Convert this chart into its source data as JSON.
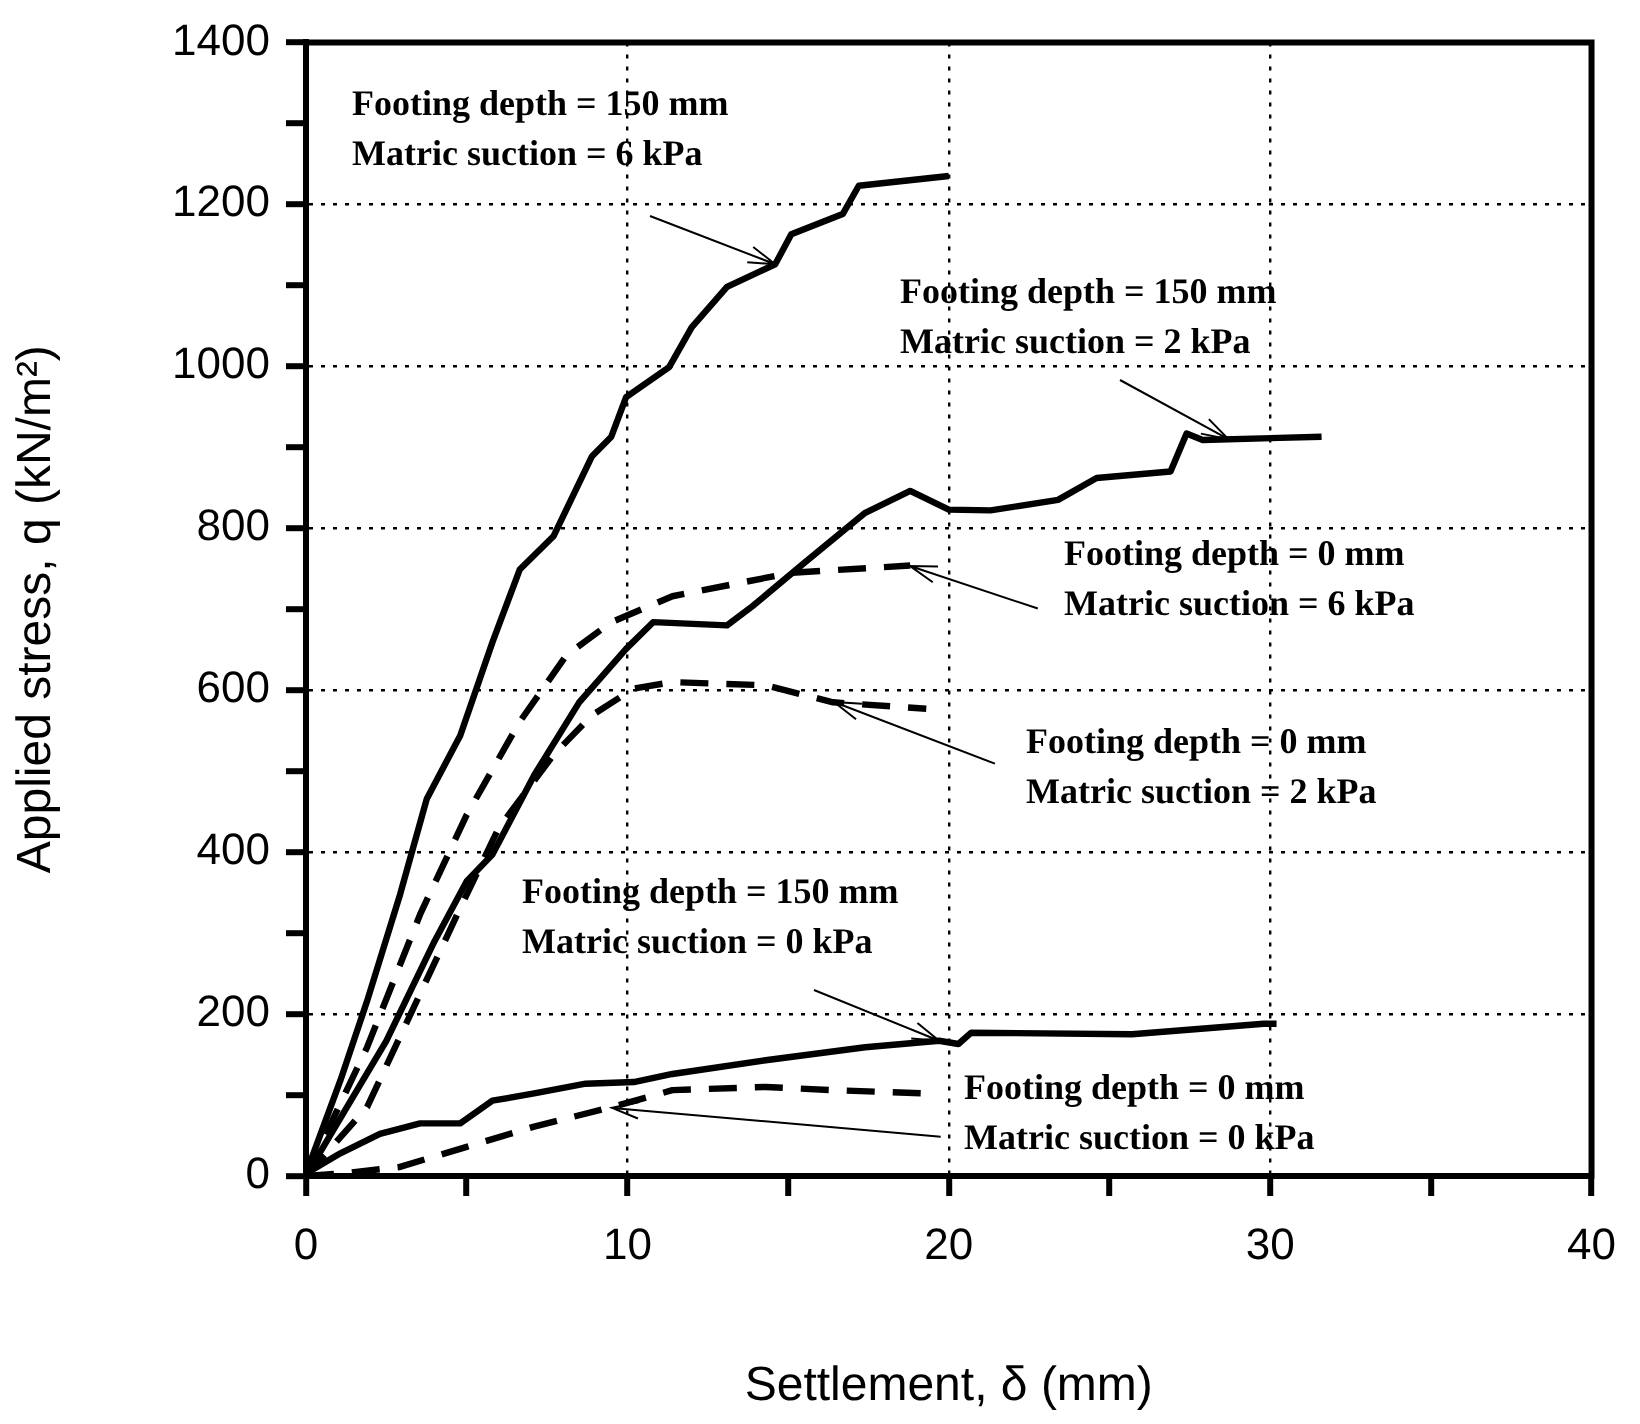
{
  "chart_data": {
    "type": "line",
    "xlabel": "Settlement, δ (mm)",
    "ylabel": "Applied stress, q (kN/m²)",
    "xlim": [
      0,
      40
    ],
    "xticks": [
      0,
      {
        "value": 5,
        "label": null
      },
      10,
      {
        "value": 15,
        "label": null
      },
      20,
      {
        "value": 25,
        "label": null
      },
      30,
      {
        "value": 35,
        "label": null
      },
      40
    ],
    "ylim": [
      0,
      1400
    ],
    "yticks": [
      0,
      {
        "value": 100,
        "label": null
      },
      200,
      {
        "value": 300,
        "label": null
      },
      400,
      {
        "value": 500,
        "label": null
      },
      600,
      {
        "value": 700,
        "label": null
      },
      800,
      {
        "value": 900,
        "label": null
      },
      1000,
      {
        "value": 1100,
        "label": null
      },
      1200,
      {
        "value": 1300,
        "label": null
      },
      1400
    ],
    "grid": true,
    "legend": false,
    "marker": "none",
    "series": [
      {
        "color": "#000000",
        "line_style": "solid",
        "x": [
          0,
          1.07,
          1.9,
          2.93,
          3.76,
          4.8,
          5.8,
          6.65,
          7.7,
          8.9,
          9.5,
          9.96,
          11.3,
          12.0,
          13.1,
          14.6,
          15.1,
          16.7,
          17.2,
          20.0
        ],
        "values": [
          3,
          118,
          216,
          348,
          466,
          544,
          659,
          749,
          790,
          889,
          913,
          962,
          999,
          1048,
          1098,
          1126,
          1163,
          1188,
          1223,
          1235
        ]
      },
      {
        "color": "#000000",
        "line_style": "solid",
        "x": [
          0,
          1.2,
          2.5,
          4.0,
          5.0,
          5.8,
          7.1,
          8.5,
          9.96,
          10.8,
          13.1,
          13.9,
          15.5,
          17.4,
          18.8,
          20.0,
          21.3,
          23.4,
          24.6,
          26.9,
          27.4,
          27.9,
          31.6
        ],
        "values": [
          0,
          80,
          167,
          290,
          364,
          397,
          495,
          585,
          651,
          684,
          680,
          704,
          757,
          819,
          846,
          823,
          822,
          835,
          862,
          870,
          917,
          909,
          913
        ]
      },
      {
        "color": "#000000",
        "line_style": "dashed",
        "x": [
          0,
          1.9,
          3.55,
          5.0,
          6.65,
          8.1,
          9.5,
          11.4,
          15.1,
          18.8
        ],
        "values": [
          0,
          159,
          323,
          446,
          561,
          643,
          684,
          716,
          745,
          754
        ]
      },
      {
        "color": "#000000",
        "line_style": "dashed",
        "x": [
          0,
          1.9,
          3.55,
          4.8,
          6.0,
          7.7,
          8.9,
          10.2,
          11.4,
          14.3,
          16.4,
          19.3
        ],
        "values": [
          0,
          85,
          225,
          331,
          430,
          520,
          569,
          602,
          610,
          606,
          585,
          577
        ]
      },
      {
        "color": "#000000",
        "line_style": "solid",
        "x": [
          0,
          1.07,
          2.3,
          3.55,
          4.8,
          5.8,
          7.1,
          8.7,
          10.2,
          11.4,
          14.3,
          17.4,
          19.7,
          20.3,
          20.7,
          25.7,
          29.8,
          30.2
        ],
        "values": [
          3,
          28,
          52,
          65,
          65,
          93,
          102,
          114,
          116,
          126,
          143,
          159,
          167,
          163,
          177,
          175,
          188,
          188
        ]
      },
      {
        "color": "#000000",
        "line_style": "dashed",
        "x": [
          0,
          1.07,
          2.9,
          5.0,
          7.1,
          9.5,
          11.4,
          14.3,
          16.4,
          19.3
        ],
        "values": [
          0,
          3,
          11,
          36,
          61,
          85,
          106,
          110,
          106,
          102
        ]
      }
    ],
    "annotations": [
      {
        "text": "Footing depth = 150 mm\nMatric suction = 6 kPa",
        "x": 14.6,
        "y": 1126
      },
      {
        "text": "Footing depth = 150 mm\nMatric suction = 2 kPa",
        "x": 28.7,
        "y": 910
      },
      {
        "text": "Footing depth = 0 mm\nMatric suction = 6 kPa",
        "x": 18.8,
        "y": 754
      },
      {
        "text": "Footing depth = 0 mm\nMatric suction = 2 kPa",
        "x": 16.4,
        "y": 585
      },
      {
        "text": "Footing depth = 150 mm\nMatric suction = 0 kPa",
        "x": 19.7,
        "y": 167
      },
      {
        "text": "Footing depth = 0 mm\nMatric suction = 0 kPa",
        "x": 9.5,
        "y": 85
      }
    ]
  }
}
